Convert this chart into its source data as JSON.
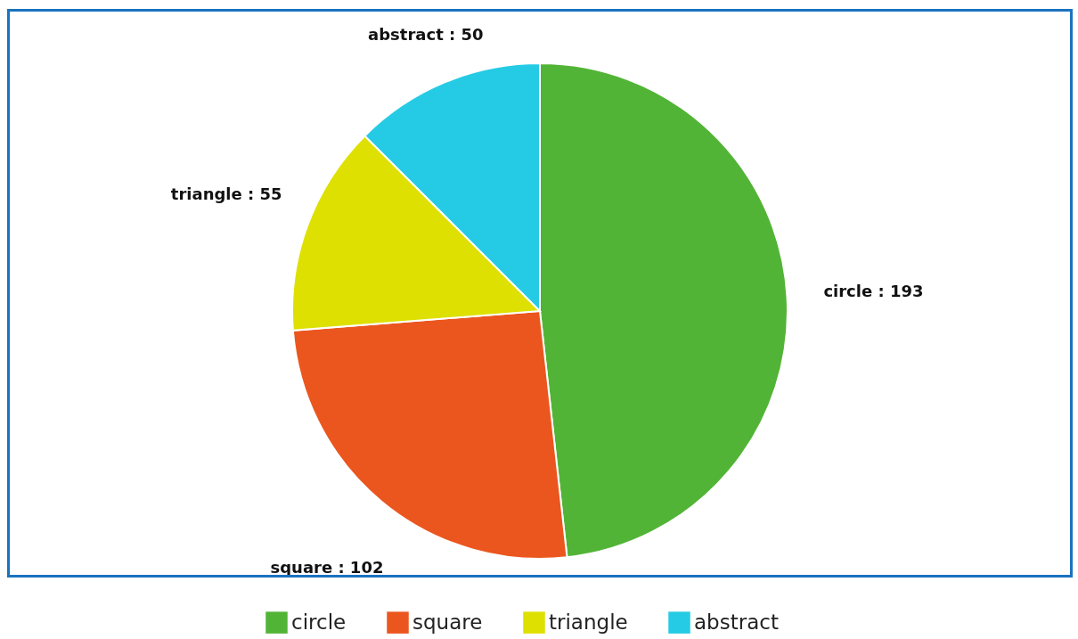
{
  "chart_data": {
    "type": "pie",
    "categories": [
      "circle",
      "square",
      "triangle",
      "abstract"
    ],
    "values": [
      193,
      102,
      55,
      50
    ],
    "colors": [
      "#52b436",
      "#eb561e",
      "#dde000",
      "#25cbe4"
    ],
    "value_labels": [
      "circle : 193",
      "square : 102",
      "triangle : 55",
      "abstract : 50"
    ],
    "legend": "bottom"
  }
}
